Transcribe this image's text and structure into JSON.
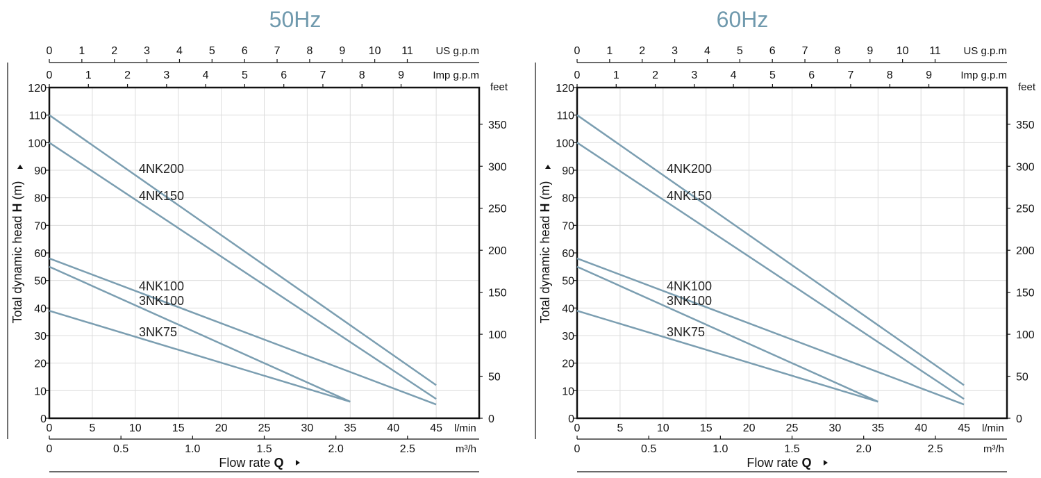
{
  "chart_data": [
    {
      "type": "line",
      "title": "50Hz",
      "ylabel_parts": [
        "Total dynamic head ",
        "H",
        " (m)"
      ],
      "xlabel_parts": [
        "Flow rate ",
        "Q"
      ],
      "y_ticks": [
        0,
        10,
        20,
        30,
        40,
        50,
        60,
        70,
        80,
        90,
        100,
        110,
        120
      ],
      "ylim": [
        0,
        120
      ],
      "right_unit": "feet",
      "right_ticks": [
        0,
        50,
        100,
        150,
        200,
        250,
        300,
        350
      ],
      "lmin_unit": "l/min",
      "lmin_ticks": [
        0,
        5,
        10,
        15,
        20,
        25,
        30,
        35,
        40,
        45
      ],
      "xlim": [
        0,
        50
      ],
      "m3h_unit": "m³/h",
      "m3h_ticks": [
        "0",
        "0.5",
        "1.0",
        "1.5",
        "2.0",
        "2.5"
      ],
      "usgpm_unit": "US g.p.m",
      "usgpm_ticks": [
        0,
        1,
        2,
        3,
        4,
        5,
        6,
        7,
        8,
        9,
        10,
        11
      ],
      "impgpm_unit": "Imp g.p.m",
      "impgpm_ticks": [
        0,
        1,
        2,
        3,
        4,
        5,
        6,
        7,
        8,
        9
      ],
      "series": [
        {
          "name": "4NK200",
          "x": [
            0,
            45
          ],
          "y": [
            110,
            12
          ]
        },
        {
          "name": "4NK150",
          "x": [
            0,
            45
          ],
          "y": [
            100,
            7
          ]
        },
        {
          "name": "4NK100",
          "x": [
            0,
            45
          ],
          "y": [
            58,
            5
          ]
        },
        {
          "name": "3NK100",
          "x": [
            0,
            35
          ],
          "y": [
            55,
            6
          ]
        },
        {
          "name": "3NK75",
          "x": [
            0,
            35
          ],
          "y": [
            39,
            6
          ]
        }
      ]
    },
    {
      "type": "line",
      "title": "60Hz",
      "ylabel_parts": [
        "Total dynamic head ",
        "H",
        " (m)"
      ],
      "xlabel_parts": [
        "Flow rate ",
        "Q"
      ],
      "y_ticks": [
        0,
        10,
        20,
        30,
        40,
        50,
        60,
        70,
        80,
        90,
        100,
        110,
        120
      ],
      "ylim": [
        0,
        120
      ],
      "right_unit": "feet",
      "right_ticks": [
        0,
        50,
        100,
        150,
        200,
        250,
        300,
        350
      ],
      "lmin_unit": "l/min",
      "lmin_ticks": [
        0,
        5,
        10,
        15,
        20,
        25,
        30,
        35,
        40,
        45
      ],
      "xlim": [
        0,
        50
      ],
      "m3h_unit": "m³/h",
      "m3h_ticks": [
        "0",
        "0.5",
        "1.0",
        "1.5",
        "2.0",
        "2.5"
      ],
      "usgpm_unit": "US g.p.m",
      "usgpm_ticks": [
        0,
        1,
        2,
        3,
        4,
        5,
        6,
        7,
        8,
        9,
        10,
        11
      ],
      "impgpm_unit": "Imp g.p.m",
      "impgpm_ticks": [
        0,
        1,
        2,
        3,
        4,
        5,
        6,
        7,
        8,
        9
      ],
      "series": [
        {
          "name": "4NK200",
          "x": [
            0,
            45
          ],
          "y": [
            110,
            12
          ]
        },
        {
          "name": "4NK150",
          "x": [
            0,
            45
          ],
          "y": [
            100,
            7
          ]
        },
        {
          "name": "4NK100",
          "x": [
            0,
            45
          ],
          "y": [
            58,
            5
          ]
        },
        {
          "name": "3NK100",
          "x": [
            0,
            35
          ],
          "y": [
            55,
            6
          ]
        },
        {
          "name": "3NK75",
          "x": [
            0,
            35
          ],
          "y": [
            39,
            6
          ]
        }
      ]
    }
  ]
}
